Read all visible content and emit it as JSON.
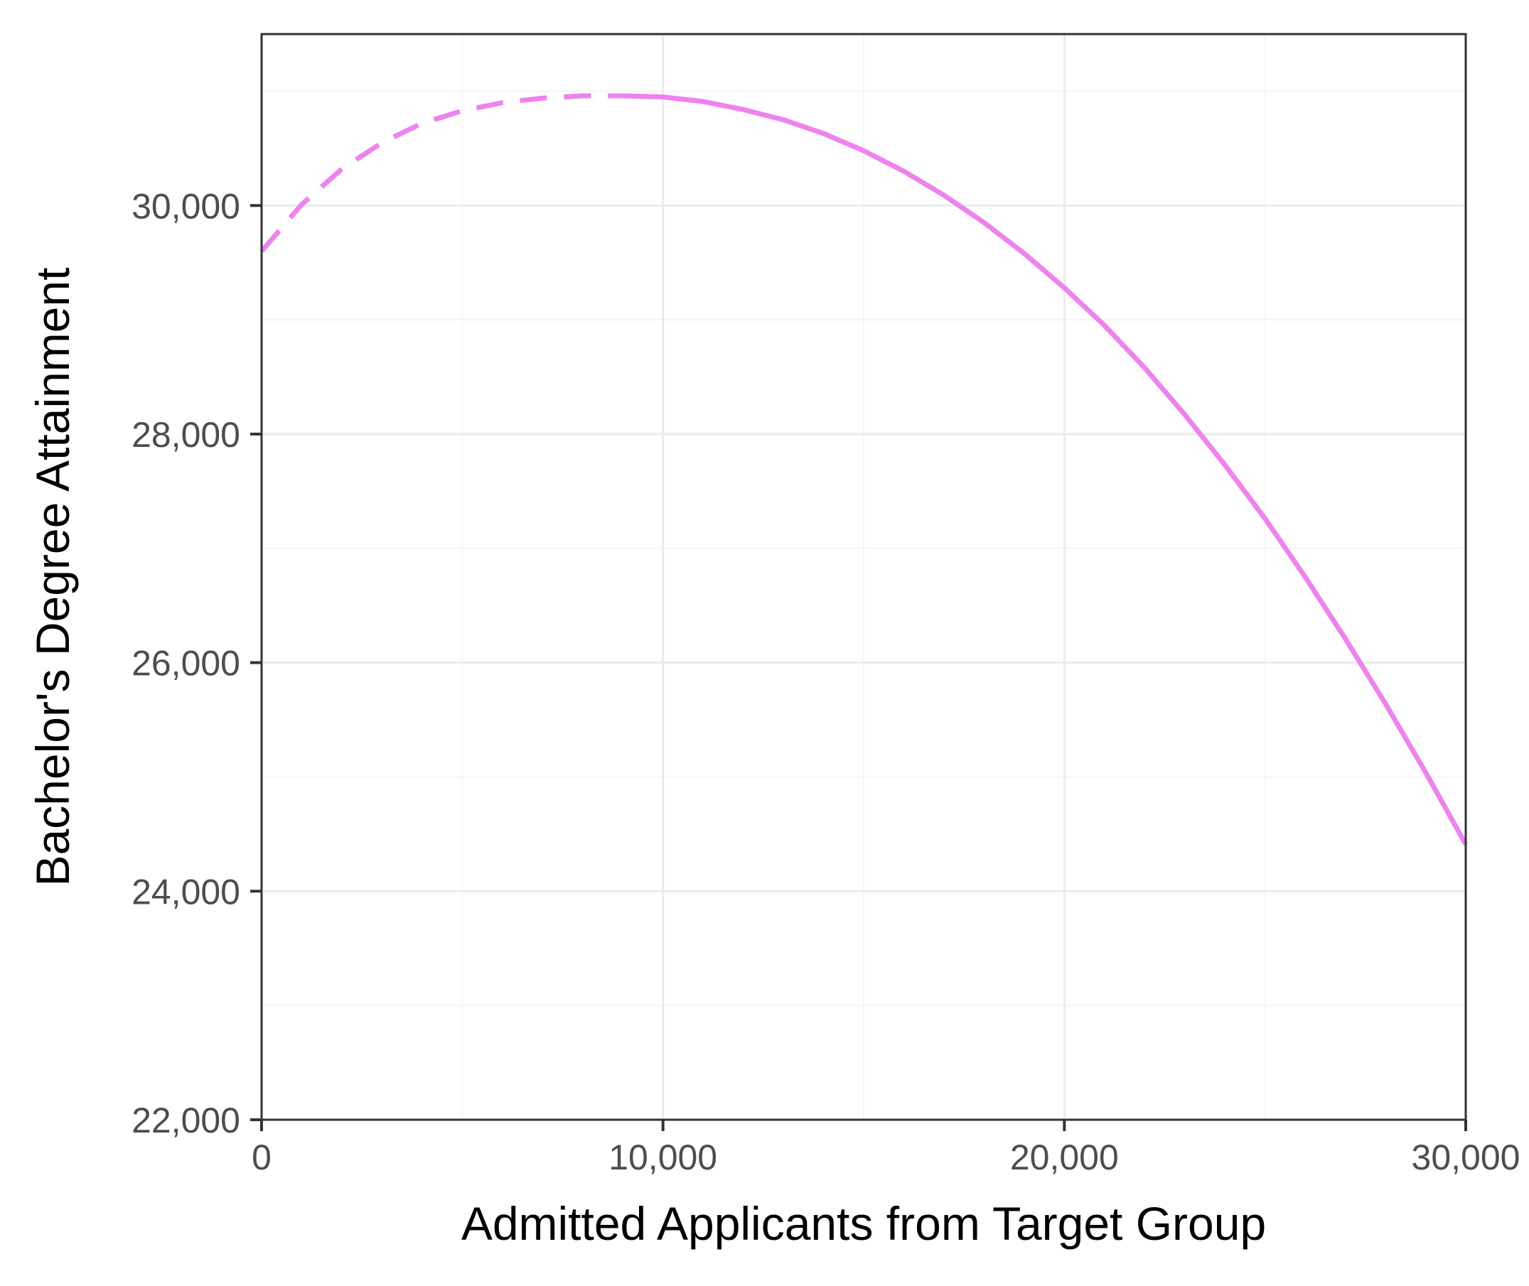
{
  "chart_data": {
    "type": "line",
    "xlabel": "Admitted Applicants from Target Group",
    "ylabel": "Bachelor's Degree Attainment",
    "xlim": [
      0,
      30000
    ],
    "ylim": [
      22000,
      31500
    ],
    "x_ticks": [
      {
        "value": 0,
        "label": "0"
      },
      {
        "value": 10000,
        "label": "10,000"
      },
      {
        "value": 20000,
        "label": "20,000"
      },
      {
        "value": 30000,
        "label": "30,000"
      }
    ],
    "y_ticks": [
      {
        "value": 22000,
        "label": "22,000"
      },
      {
        "value": 24000,
        "label": "24,000"
      },
      {
        "value": 26000,
        "label": "26,000"
      },
      {
        "value": 28000,
        "label": "28,000"
      },
      {
        "value": 30000,
        "label": "30,000"
      }
    ],
    "grid": true,
    "series": [
      {
        "style": "dashed",
        "color": "#ee82ee",
        "x": [
          0,
          1000,
          2000,
          3000,
          4000,
          5000,
          6000,
          7000,
          8000,
          9000
        ],
        "y": [
          29600,
          30010,
          30320,
          30550,
          30720,
          30830,
          30900,
          30940,
          30960,
          30960
        ]
      },
      {
        "style": "solid",
        "color": "#ee82ee",
        "x": [
          9000,
          10000,
          11000,
          12000,
          13000,
          14000,
          15000,
          16000,
          17000,
          18000,
          19000,
          20000,
          21000,
          22000,
          23000,
          24000,
          25000,
          26000,
          27000,
          28000,
          29000,
          30000
        ],
        "y": [
          30960,
          30950,
          30910,
          30840,
          30750,
          30630,
          30480,
          30300,
          30090,
          29850,
          29580,
          29280,
          28950,
          28580,
          28170,
          27730,
          27260,
          26750,
          26210,
          25640,
          25040,
          24410
        ]
      }
    ]
  }
}
